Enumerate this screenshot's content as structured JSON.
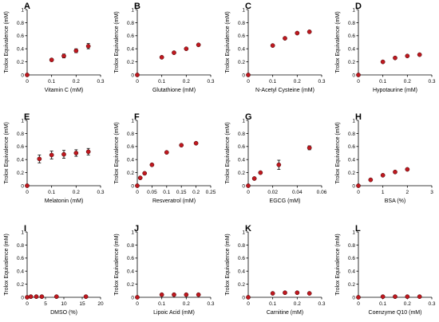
{
  "figure": {
    "point_color": "#c0181f",
    "axis_color": "#000000",
    "ylabel": "Trolox Equivalence (mM)"
  },
  "chart_data": [
    {
      "type": "scatter",
      "panel_label": "A",
      "title": "",
      "xlabel": "Vitamin C (mM)",
      "ylabel": "Trolox Equivalence (mM)",
      "xlim": [
        0,
        0.3
      ],
      "xticks": [
        "0",
        "0.1",
        "0.2",
        "0.3"
      ],
      "ylim": [
        0,
        1
      ],
      "yticks": [
        "0",
        "0.2",
        "0.4",
        "0.6",
        "0.8",
        "1"
      ],
      "x": [
        0,
        0.1,
        0.15,
        0.2,
        0.25
      ],
      "values": [
        0.0,
        0.23,
        0.29,
        0.37,
        0.44
      ],
      "error": [
        0,
        0.02,
        0.03,
        0.03,
        0.04
      ]
    },
    {
      "type": "scatter",
      "panel_label": "B",
      "title": "",
      "xlabel": "Glutathione (mM)",
      "ylabel": "Trolox Equivalence (mM)",
      "xlim": [
        0,
        0.3
      ],
      "xticks": [
        "0",
        "0.1",
        "0.2",
        "0.3"
      ],
      "ylim": [
        0,
        1
      ],
      "yticks": [
        "0",
        "0.2",
        "0.4",
        "0.6",
        "0.8",
        "1"
      ],
      "x": [
        0,
        0.1,
        0.15,
        0.2,
        0.25
      ],
      "values": [
        0.0,
        0.27,
        0.34,
        0.4,
        0.46
      ],
      "error": [
        0,
        0,
        0,
        0,
        0
      ]
    },
    {
      "type": "scatter",
      "panel_label": "C",
      "title": "",
      "xlabel": "N-Acetyl Cysteine (mM)",
      "ylabel": "Trolox Equivalence (mM)",
      "xlim": [
        0,
        0.3
      ],
      "xticks": [
        "0",
        "0.1",
        "0.2",
        "0.3"
      ],
      "ylim": [
        0,
        1
      ],
      "yticks": [
        "0",
        "0.2",
        "0.4",
        "0.6",
        "0.8",
        "1"
      ],
      "x": [
        0,
        0.1,
        0.15,
        0.2,
        0.25
      ],
      "values": [
        0.0,
        0.45,
        0.56,
        0.64,
        0.66
      ],
      "error": [
        0,
        0,
        0,
        0,
        0
      ]
    },
    {
      "type": "scatter",
      "panel_label": "D",
      "title": "",
      "xlabel": "Hypotaurine (mM)",
      "ylabel": "Trolox Equivalence (mM)",
      "xlim": [
        0,
        0.3
      ],
      "xticks": [
        "0",
        "0.1",
        "0.2",
        "0.3"
      ],
      "ylim": [
        0,
        1
      ],
      "yticks": [
        "0",
        "0.2",
        "0.4",
        "0.6",
        "0.8",
        "1"
      ],
      "x": [
        0,
        0.1,
        0.15,
        0.2,
        0.25
      ],
      "values": [
        0.0,
        0.2,
        0.26,
        0.29,
        0.31
      ],
      "error": [
        0,
        0,
        0,
        0,
        0
      ]
    },
    {
      "type": "scatter",
      "panel_label": "E",
      "title": "",
      "xlabel": "Melatonin (mM)",
      "ylabel": "Trolox Equivalence (mM)",
      "xlim": [
        0,
        0.3
      ],
      "xticks": [
        "0",
        "0.1",
        "0.2",
        "0.3"
      ],
      "ylim": [
        0,
        1
      ],
      "yticks": [
        "0",
        "0.2",
        "0.4",
        "0.6",
        "0.8",
        "1"
      ],
      "x": [
        0,
        0.05,
        0.1,
        0.15,
        0.2,
        0.25
      ],
      "values": [
        0.0,
        0.41,
        0.47,
        0.48,
        0.5,
        0.52
      ],
      "error": [
        0,
        0.06,
        0.06,
        0.06,
        0.05,
        0.05
      ]
    },
    {
      "type": "scatter",
      "panel_label": "F",
      "title": "",
      "xlabel": "Resveratrol (mM)",
      "ylabel": "Trolox Equivalence (mM)",
      "xlim": [
        0,
        0.25
      ],
      "xticks": [
        "0",
        "0.05",
        "0.1",
        "0.15",
        "0.2",
        "0.25"
      ],
      "ylim": [
        0,
        1
      ],
      "yticks": [
        "0",
        "0.2",
        "0.4",
        "0.6",
        "0.8",
        "1"
      ],
      "x": [
        0,
        0.01,
        0.025,
        0.05,
        0.1,
        0.15,
        0.2
      ],
      "values": [
        0.0,
        0.12,
        0.19,
        0.32,
        0.51,
        0.62,
        0.65
      ],
      "error": [
        0,
        0,
        0,
        0,
        0,
        0,
        0
      ]
    },
    {
      "type": "scatter",
      "panel_label": "G",
      "title": "",
      "xlabel": "EGCG (mM)",
      "ylabel": "Trolox Equivalence (mM)",
      "xlim": [
        0,
        0.06
      ],
      "xticks": [
        "0",
        "0.02",
        "0.04",
        "0.06"
      ],
      "ylim": [
        0,
        1
      ],
      "yticks": [
        "0",
        "0.2",
        "0.4",
        "0.6",
        "0.8",
        "1"
      ],
      "x": [
        0,
        0.005,
        0.01,
        0.025,
        0.05
      ],
      "values": [
        0.0,
        0.11,
        0.2,
        0.32,
        0.58
      ],
      "error": [
        0,
        0,
        0,
        0.07,
        0.03
      ]
    },
    {
      "type": "scatter",
      "panel_label": "H",
      "title": "",
      "xlabel": "BSA (%)",
      "ylabel": "Trolox Equivalence (mM)",
      "xlim": [
        0,
        3
      ],
      "xticks": [
        "0",
        "1",
        "2",
        "3"
      ],
      "ylim": [
        0,
        1
      ],
      "yticks": [
        "0",
        "0.2",
        "0.4",
        "0.6",
        "0.8",
        "1"
      ],
      "x": [
        0,
        0.5,
        1,
        1.5,
        2
      ],
      "values": [
        0.0,
        0.09,
        0.16,
        0.21,
        0.25
      ],
      "error": [
        0,
        0,
        0,
        0,
        0
      ]
    },
    {
      "type": "scatter",
      "panel_label": "I",
      "title": "",
      "xlabel": "DMSO (%)",
      "ylabel": "Trolox Equivalence (mM)",
      "xlim": [
        0,
        20
      ],
      "xticks": [
        "0",
        "5",
        "10",
        "15",
        "20"
      ],
      "ylim": [
        0,
        1
      ],
      "yticks": [
        "0",
        "0.2",
        "0.4",
        "0.6",
        "0.8",
        "1"
      ],
      "x": [
        0,
        1,
        2.5,
        4,
        8,
        16
      ],
      "values": [
        0.0,
        0.01,
        0.01,
        0.01,
        0.01,
        0.01
      ],
      "error": [
        0,
        0,
        0,
        0,
        0,
        0
      ]
    },
    {
      "type": "scatter",
      "panel_label": "J",
      "title": "",
      "xlabel": "Lipoic Acid (mM)",
      "ylabel": "Trolox Equivalence (mM)",
      "xlim": [
        0,
        0.3
      ],
      "xticks": [
        "0",
        "0.1",
        "0.2",
        "0.3"
      ],
      "ylim": [
        0,
        1
      ],
      "yticks": [
        "0",
        "0.2",
        "0.4",
        "0.6",
        "0.8",
        "1"
      ],
      "x": [
        0,
        0.1,
        0.15,
        0.2,
        0.25
      ],
      "values": [
        0.0,
        0.04,
        0.04,
        0.04,
        0.04
      ],
      "error": [
        0,
        0,
        0,
        0,
        0
      ]
    },
    {
      "type": "scatter",
      "panel_label": "K",
      "title": "",
      "xlabel": "Carnitine (mM)",
      "ylabel": "Trolox Equivalence (mM)",
      "xlim": [
        0,
        0.3
      ],
      "xticks": [
        "0",
        "0.1",
        "0.2",
        "0.3"
      ],
      "ylim": [
        0,
        1
      ],
      "yticks": [
        "0",
        "0.2",
        "0.4",
        "0.6",
        "0.8",
        "1"
      ],
      "x": [
        0,
        0.1,
        0.15,
        0.2,
        0.25
      ],
      "values": [
        0.0,
        0.06,
        0.07,
        0.07,
        0.06
      ],
      "error": [
        0,
        0,
        0,
        0,
        0
      ]
    },
    {
      "type": "scatter",
      "panel_label": "L",
      "title": "",
      "xlabel": "Coenzyme Q10 (mM)",
      "ylabel": "Trolox Equivalence (mM)",
      "xlim": [
        0,
        0.3
      ],
      "xticks": [
        "0",
        "0.1",
        "0.2",
        "0.3"
      ],
      "ylim": [
        0,
        1
      ],
      "yticks": [
        "0",
        "0.2",
        "0.4",
        "0.6",
        "0.8",
        "1"
      ],
      "x": [
        0,
        0.1,
        0.15,
        0.2,
        0.25
      ],
      "values": [
        0.0,
        0.01,
        0.01,
        0.01,
        0.01
      ],
      "error": [
        0,
        0,
        0,
        0,
        0
      ]
    }
  ]
}
